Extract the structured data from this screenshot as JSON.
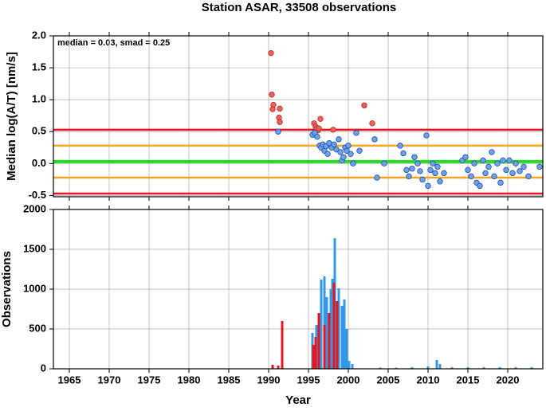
{
  "chart_data": [
    {
      "type": "scatter",
      "title": "Station ASAR, 33508 observations",
      "ylabel": "Median log(A/T) [nm/s]",
      "annotation": "median = 0.03, smad = 0.25",
      "xlim": [
        1963,
        2024.4
      ],
      "xticks": [
        1965,
        1970,
        1975,
        1980,
        1985,
        1990,
        1995,
        2000,
        2005,
        2010,
        2015,
        2020
      ],
      "ylim": [
        -0.52,
        2.0
      ],
      "yticks": [
        {
          "value": -0.5,
          "label": "-0.5"
        },
        {
          "value": 0,
          "label": "0.0"
        },
        0.5,
        {
          "value": 1,
          "label": "1.0"
        },
        1.5,
        {
          "value": 2,
          "label": "2.0"
        }
      ],
      "grid": true,
      "hlines": [
        {
          "value": 0.53,
          "color": "#e8161c"
        },
        {
          "value": 0.28,
          "color": "#f7a520"
        },
        {
          "value": 0.03,
          "color": "#22dd22"
        },
        {
          "value": -0.22,
          "color": "#f7a520"
        },
        {
          "value": -0.47,
          "color": "#e8161c"
        }
      ],
      "series": [
        {
          "color": "#f0605a",
          "x": [
            1990.3,
            1990.4,
            1990.6,
            1990.5,
            1991.4,
            1991.3,
            1991.4,
            1995.7,
            1995.9,
            1996.0,
            1996.2,
            1996.5,
            1996.3,
            1998.1,
            2002.0,
            2003.0
          ],
          "values": [
            1.73,
            1.08,
            0.92,
            0.85,
            0.86,
            0.72,
            0.65,
            0.63,
            0.58,
            0.55,
            0.52,
            0.7,
            0.55,
            0.53,
            0.91,
            0.63
          ]
        },
        {
          "color": "#6fa0ee",
          "x": [
            1991.2,
            1995.5,
            1995.8,
            1996.1,
            1996.4,
            1996.6,
            1996.8,
            1997.0,
            1997.2,
            1997.4,
            1997.6,
            1997.9,
            1998.2,
            1998.5,
            1998.8,
            1999.0,
            1999.2,
            1999.4,
            1999.6,
            1999.8,
            2000.0,
            2000.3,
            2000.6,
            2001.0,
            2001.4,
            2003.3,
            2003.6,
            2004.5,
            2006.5,
            2006.9,
            2007.3,
            2007.6,
            2008.0,
            2008.3,
            2008.7,
            2009.0,
            2009.3,
            2009.8,
            2010.0,
            2010.3,
            2010.6,
            2010.9,
            2011.2,
            2011.5,
            2012.0,
            2014.3,
            2014.7,
            2015.0,
            2015.4,
            2015.8,
            2016.1,
            2016.5,
            2016.9,
            2017.2,
            2017.6,
            2018.0,
            2018.3,
            2018.7,
            2019.1,
            2019.4,
            2019.8,
            2020.2,
            2020.6,
            2021.0,
            2021.5,
            2022.0,
            2022.6,
            2024.0
          ],
          "values": [
            0.5,
            0.45,
            0.48,
            0.42,
            0.28,
            0.25,
            0.3,
            0.2,
            0.27,
            0.15,
            0.32,
            0.25,
            0.3,
            0.22,
            0.38,
            0.18,
            0.05,
            0.1,
            0.25,
            0.2,
            0.28,
            0.15,
            0.0,
            0.48,
            0.2,
            0.38,
            -0.22,
            0.0,
            0.28,
            0.16,
            -0.1,
            -0.2,
            -0.08,
            0.1,
            0.0,
            -0.12,
            -0.25,
            0.44,
            -0.35,
            -0.1,
            0.0,
            -0.15,
            -0.05,
            -0.28,
            -0.15,
            0.05,
            0.1,
            -0.1,
            -0.2,
            0.0,
            -0.3,
            -0.35,
            0.05,
            -0.15,
            -0.05,
            0.18,
            -0.2,
            0.0,
            -0.3,
            0.05,
            -0.1,
            0.05,
            -0.15,
            0.0,
            -0.12,
            -0.05,
            -0.2,
            -0.05
          ]
        }
      ]
    },
    {
      "type": "bar",
      "ylabel": "Observations",
      "xlabel": "Year",
      "xlim": [
        1963,
        2024.4
      ],
      "xticks": [
        1965,
        1970,
        1975,
        1980,
        1985,
        1990,
        1995,
        2000,
        2005,
        2010,
        2015,
        2020
      ],
      "ylim": [
        0,
        2000
      ],
      "yticks": [
        0,
        500,
        1000,
        1500,
        2000
      ],
      "grid": true,
      "series": [
        {
          "color": "#3399e6",
          "x": [
            1995.5,
            1996.0,
            1996.6,
            1997.0,
            1997.3,
            1997.8,
            1998.0,
            1998.3,
            1998.8,
            1999.2,
            1999.5,
            1999.8,
            2000.1,
            2000.5,
            2004,
            2006,
            2008,
            2010,
            2011.1,
            2011.5,
            2013,
            2015,
            2017,
            2019,
            2021,
            2023
          ],
          "values": [
            450,
            550,
            1120,
            1160,
            900,
            1000,
            1130,
            1640,
            1010,
            790,
            870,
            500,
            100,
            60,
            15,
            15,
            20,
            30,
            110,
            60,
            20,
            20,
            20,
            20,
            20,
            20
          ]
        },
        {
          "color": "#e8161c",
          "x": [
            1990.5,
            1991.2,
            1991.7,
            1995.6,
            1995.9,
            1996.3,
            1997.0,
            1997.6,
            1998.2,
            1998.6
          ],
          "values": [
            50,
            40,
            600,
            300,
            400,
            700,
            550,
            700,
            1080,
            850
          ]
        }
      ]
    }
  ]
}
